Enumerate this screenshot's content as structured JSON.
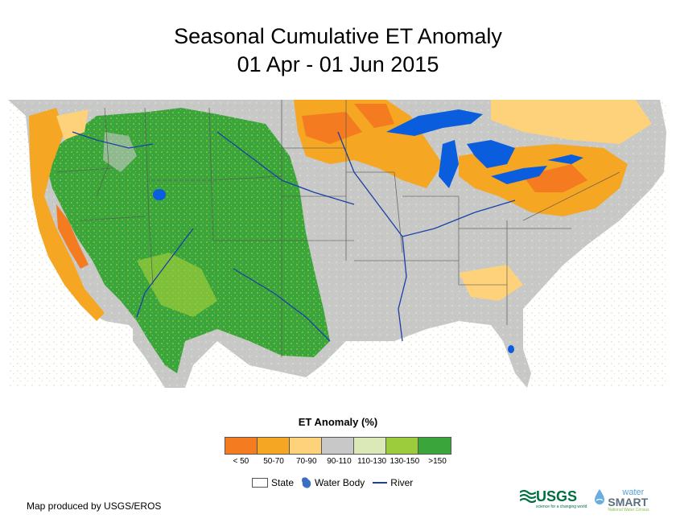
{
  "title": {
    "line1": "Seasonal Cumulative ET Anomaly",
    "line2": "01 Apr - 01 Jun 2015"
  },
  "legend": {
    "title": "ET Anomaly (%)",
    "classes": [
      {
        "label": "< 50",
        "color": "#f47b20"
      },
      {
        "label": "50-70",
        "color": "#f5a623"
      },
      {
        "label": "70-90",
        "color": "#fed27a"
      },
      {
        "label": "90-110",
        "color": "#c8c8c8"
      },
      {
        "label": "110-130",
        "color": "#dbe8b8"
      },
      {
        "label": "130-150",
        "color": "#9ccc3c"
      },
      {
        "label": ">150",
        "color": "#3aa53a"
      }
    ]
  },
  "symbols": {
    "state": "State",
    "water_body": "Water Body",
    "river": "River"
  },
  "credit": "Map produced by USGS/EROS",
  "logos": {
    "usgs": "USGS",
    "usgs_tagline": "science for a changing world",
    "water": "water",
    "smart": "SMART",
    "ws_tagline": "National Water Census"
  },
  "colors": {
    "water": "#0a5ddc",
    "river": "#1a3fa8",
    "state_border": "#555555",
    "background": "#ffffff"
  }
}
